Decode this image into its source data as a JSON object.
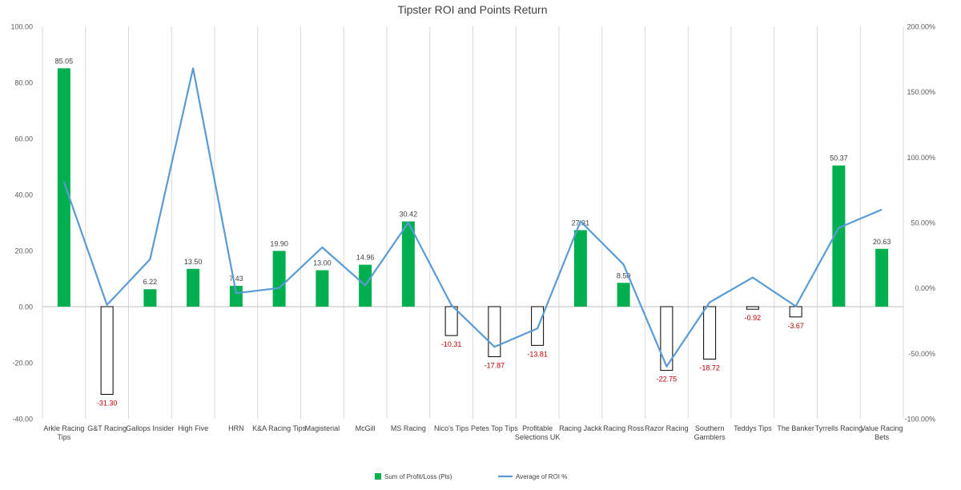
{
  "chart_data": {
    "type": "bar",
    "title": "Tipster ROI and Points Return",
    "categories": [
      "Arkle Racing Tips",
      "G&T Racing",
      "Gallops Insider",
      "High Five",
      "HRN",
      "K&A Racing Tips",
      "Magisterial",
      "McGill",
      "MS Racing",
      "Nico's Tips",
      "Petes Top Tips",
      "Profitable Selections UK",
      "Racing Jackk",
      "Racing Ross",
      "Razor Racing",
      "Southern Gamblers",
      "Teddys Tips",
      "The Banker",
      "Tyrrells Racing",
      "Value Racing Bets"
    ],
    "series": [
      {
        "name": "Sum of Profit/Loss (Pts)",
        "type": "bar",
        "axis": "left",
        "color": "#00b050",
        "values": [
          85.05,
          -31.3,
          6.22,
          13.5,
          7.43,
          19.9,
          13.0,
          14.96,
          30.42,
          -10.31,
          -17.87,
          -13.81,
          27.31,
          8.5,
          -22.75,
          -18.72,
          -0.92,
          -3.67,
          50.37,
          20.63
        ],
        "labels": [
          "85.05",
          "-31.30",
          "6.22",
          "13.50",
          "7.43",
          "19.90",
          "13.00",
          "14.96",
          "30.42",
          "-10.31",
          "-17.87",
          "-13.81",
          "27.31",
          "8.50",
          "-22.75",
          "-18.72",
          "-0.92",
          "-3.67",
          "50.37",
          "20.63"
        ]
      },
      {
        "name": "Average of ROI %",
        "type": "line",
        "axis": "right",
        "color": "#5b9bd5",
        "values": [
          81,
          -13,
          22,
          168,
          -4,
          0,
          31,
          2,
          50,
          -13,
          -45,
          -31,
          51,
          18,
          -60,
          -11,
          8,
          -14,
          46,
          60
        ]
      }
    ],
    "left_axis": {
      "min": -40,
      "max": 100,
      "step": 20,
      "tick_labels": [
        "-40.00",
        "-20.00",
        "0.00",
        "20.00",
        "40.00",
        "60.00",
        "80.00",
        "100.00"
      ]
    },
    "right_axis": {
      "min": -100,
      "max": 200,
      "step": 50,
      "tick_labels": [
        "-100.00%",
        "-50.00%",
        "0.00%",
        "50.00%",
        "100.00%",
        "150.00%",
        "200.00%"
      ]
    },
    "negative_bar_style": "white fill with black outline",
    "negative_label_color": "#c00000",
    "grid": "vertical lines between categories",
    "legend_position": "bottom",
    "legend": [
      {
        "label": "Sum of Profit/Loss (Pts)",
        "marker": "square",
        "color": "#00b050"
      },
      {
        "label": "Average of ROI %",
        "marker": "line",
        "color": "#5b9bd5"
      }
    ]
  }
}
